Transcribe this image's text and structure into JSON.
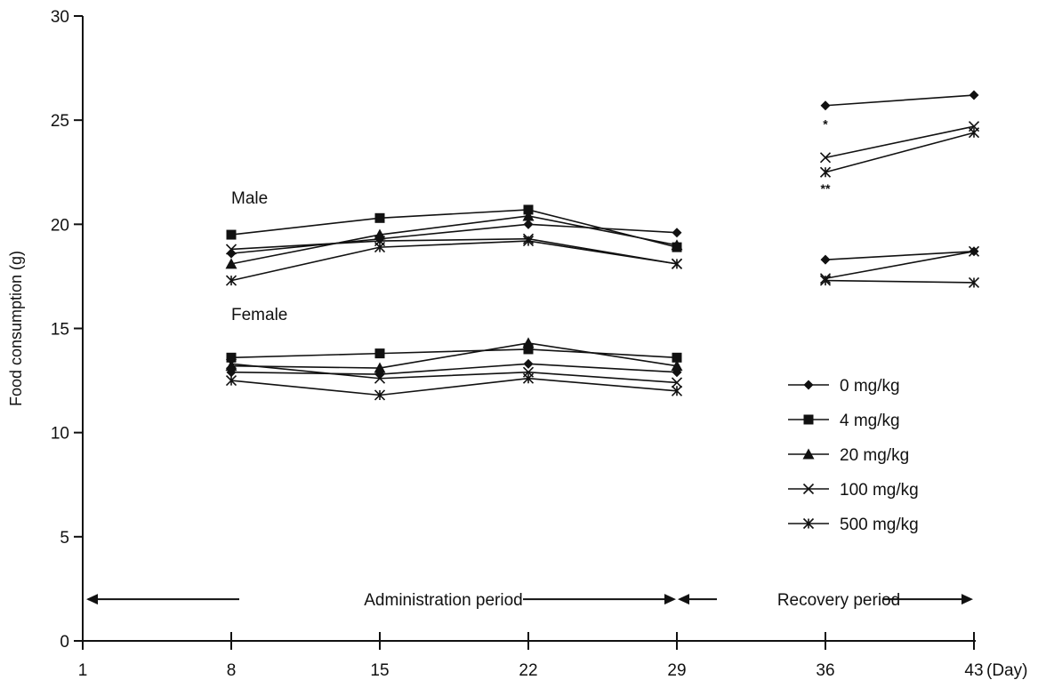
{
  "chart_data": {
    "type": "line",
    "ylabel": "Food consumption (g)",
    "xlabel": "(Day)",
    "xlim": [
      1,
      43
    ],
    "ylim": [
      0,
      30
    ],
    "x_ticks": [
      1,
      8,
      15,
      22,
      29,
      36,
      43
    ],
    "y_ticks": [
      0,
      5,
      10,
      15,
      20,
      25,
      30
    ],
    "grid": false,
    "legend_position": "right",
    "group_labels": [
      {
        "text": "Male"
      },
      {
        "text": "Female"
      }
    ],
    "period_labels": {
      "administration": "Administration period",
      "recovery": "Recovery period"
    },
    "significance_marks": [
      {
        "text": "*",
        "x": 36,
        "y": 24.6
      },
      {
        "text": "**",
        "x": 36,
        "y": 21.5
      }
    ],
    "series": [
      {
        "name": "0 mg/kg",
        "marker": "diamond",
        "sex": "Male",
        "x": [
          8,
          15,
          22,
          29
        ],
        "values": [
          18.6,
          19.3,
          20.0,
          19.6
        ]
      },
      {
        "name": "4 mg/kg",
        "marker": "square",
        "sex": "Male",
        "x": [
          8,
          15,
          22,
          29
        ],
        "values": [
          19.5,
          20.3,
          20.7,
          18.9
        ]
      },
      {
        "name": "20 mg/kg",
        "marker": "triangle",
        "sex": "Male",
        "x": [
          8,
          15,
          22,
          29
        ],
        "values": [
          18.1,
          19.5,
          20.4,
          19.0
        ]
      },
      {
        "name": "100 mg/kg",
        "marker": "x",
        "sex": "Male",
        "x": [
          8,
          15,
          22,
          29
        ],
        "values": [
          18.8,
          19.2,
          19.3,
          18.1
        ]
      },
      {
        "name": "500 mg/kg",
        "marker": "asterisk",
        "sex": "Male",
        "x": [
          8,
          15,
          22,
          29
        ],
        "values": [
          17.3,
          18.9,
          19.2,
          18.1
        ]
      },
      {
        "name": "0 mg/kg",
        "marker": "diamond",
        "sex": "Female",
        "x": [
          8,
          15,
          22,
          29
        ],
        "values": [
          12.9,
          12.8,
          13.3,
          12.9
        ]
      },
      {
        "name": "4 mg/kg",
        "marker": "square",
        "sex": "Female",
        "x": [
          8,
          15,
          22,
          29
        ],
        "values": [
          13.6,
          13.8,
          14.0,
          13.6
        ]
      },
      {
        "name": "20 mg/kg",
        "marker": "triangle",
        "sex": "Female",
        "x": [
          8,
          15,
          22,
          29
        ],
        "values": [
          13.2,
          13.1,
          14.3,
          13.2
        ]
      },
      {
        "name": "100 mg/kg",
        "marker": "x",
        "sex": "Female",
        "x": [
          8,
          15,
          22,
          29
        ],
        "values": [
          13.3,
          12.6,
          12.9,
          12.4
        ]
      },
      {
        "name": "500 mg/kg",
        "marker": "asterisk",
        "sex": "Female",
        "x": [
          8,
          15,
          22,
          29
        ],
        "values": [
          12.5,
          11.8,
          12.6,
          12.0
        ]
      },
      {
        "name": "0 mg/kg",
        "marker": "diamond",
        "sex": "Male",
        "x": [
          36,
          43
        ],
        "values": [
          25.7,
          26.2
        ]
      },
      {
        "name": "100 mg/kg",
        "marker": "x",
        "sex": "Male",
        "x": [
          36,
          43
        ],
        "values": [
          23.2,
          24.7
        ]
      },
      {
        "name": "500 mg/kg",
        "marker": "asterisk",
        "sex": "Male",
        "x": [
          36,
          43
        ],
        "values": [
          22.5,
          24.4
        ]
      },
      {
        "name": "0 mg/kg",
        "marker": "diamond",
        "sex": "Female",
        "x": [
          36,
          43
        ],
        "values": [
          18.3,
          18.7
        ]
      },
      {
        "name": "100 mg/kg",
        "marker": "x",
        "sex": "Female",
        "x": [
          36,
          43
        ],
        "values": [
          17.4,
          18.7
        ]
      },
      {
        "name": "500 mg/kg",
        "marker": "asterisk",
        "sex": "Female",
        "x": [
          36,
          43
        ],
        "values": [
          17.3,
          17.2
        ]
      }
    ],
    "legend": [
      {
        "name": "0 mg/kg",
        "marker": "diamond"
      },
      {
        "name": "4 mg/kg",
        "marker": "square"
      },
      {
        "name": "20 mg/kg",
        "marker": "triangle"
      },
      {
        "name": "100 mg/kg",
        "marker": "x"
      },
      {
        "name": "500 mg/kg",
        "marker": "asterisk"
      }
    ]
  }
}
